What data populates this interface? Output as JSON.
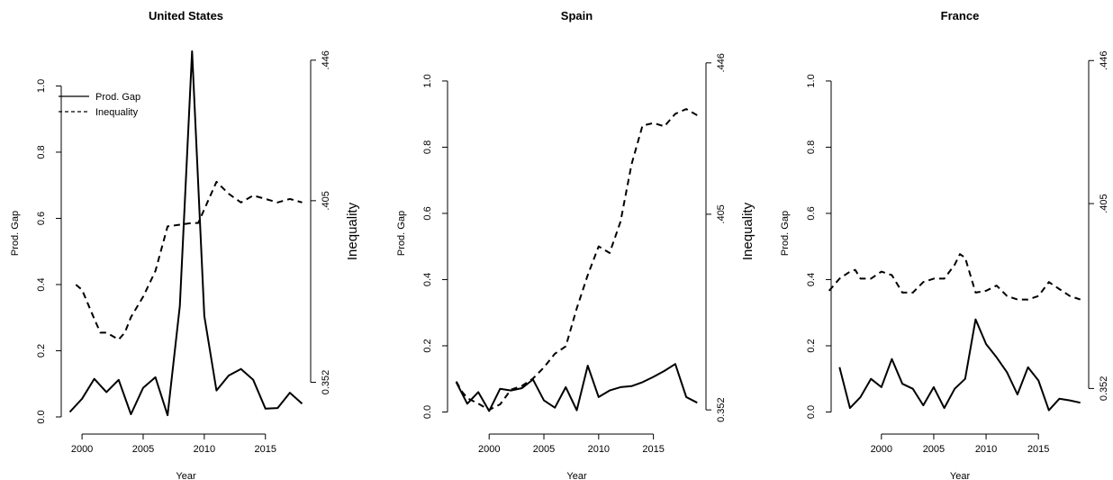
{
  "chart_data": [
    {
      "type": "line",
      "title": "United States",
      "xlabel": "Year",
      "ylabel": "Prod. Gap",
      "y2label": "Inequality",
      "xlim": [
        1998.3,
        2018.7
      ],
      "ylim": [
        -0.03,
        1.14
      ],
      "y2lim": [
        0.339,
        0.452
      ],
      "xticks": [
        "2000",
        "2005",
        "2010",
        "2015"
      ],
      "yticks": [
        "0.0",
        "0.2",
        "0.4",
        "0.6",
        "0.8",
        "1.0"
      ],
      "y2ticks": [
        "0.352",
        ".405",
        ".446"
      ],
      "legend": {
        "position": "top-left",
        "entries": [
          "Prod. Gap",
          "Inequality"
        ]
      },
      "series": [
        {
          "name": "Prod. Gap",
          "x": [
            1999,
            2000,
            2001,
            2002,
            2003,
            2004,
            2005,
            2006,
            2007,
            2008,
            2009,
            2010,
            2011,
            2012,
            2013,
            2014,
            2015,
            2016,
            2017,
            2018
          ],
          "values": [
            0.015,
            0.055,
            0.115,
            0.075,
            0.112,
            0.008,
            0.088,
            0.12,
            0.005,
            0.335,
            1.105,
            0.305,
            0.08,
            0.125,
            0.145,
            0.112,
            0.025,
            0.027,
            0.073,
            0.04
          ]
        },
        {
          "name": "Inequality",
          "x": [
            1999.5,
            2000,
            2001,
            2001.5,
            2002,
            2003,
            2003.5,
            2004,
            2005,
            2006,
            2007,
            2008,
            2009,
            2009.5,
            2010,
            2011,
            2012,
            2013,
            2014,
            2015,
            2016,
            2017,
            2018
          ],
          "values": [
            0.3805,
            0.379,
            0.3705,
            0.3665,
            0.3665,
            0.3645,
            0.3665,
            0.371,
            0.377,
            0.3845,
            0.3975,
            0.398,
            0.3985,
            0.3985,
            0.4025,
            0.4105,
            0.407,
            0.4045,
            0.4065,
            0.4055,
            0.4045,
            0.4055,
            0.4045
          ]
        }
      ]
    },
    {
      "type": "line",
      "title": "Spain",
      "xlabel": "Year",
      "ylabel": "Prod. Gap",
      "y2label": "Inequality",
      "xlim": [
        1996.2,
        2019.8
      ],
      "ylim": [
        -0.045,
        1.125
      ],
      "y2lim": [
        0.3474,
        0.4523
      ],
      "xticks": [
        "2000",
        "2005",
        "2010",
        "2015"
      ],
      "yticks": [
        "0.0",
        "0.2",
        "0.4",
        "0.6",
        "0.8",
        "1.0"
      ],
      "y2ticks": [
        "0.352",
        ".405",
        ".446"
      ],
      "series": [
        {
          "name": "Prod. Gap",
          "x": [
            1997,
            1998,
            1999,
            2000,
            2001,
            2002,
            2003,
            2004,
            2005,
            2006,
            2007,
            2008,
            2009,
            2010,
            2011,
            2012,
            2013,
            2014,
            2015,
            2016,
            2017,
            2018,
            2019
          ],
          "values": [
            0.09,
            0.025,
            0.06,
            0.003,
            0.07,
            0.065,
            0.072,
            0.098,
            0.035,
            0.013,
            0.075,
            0.005,
            0.14,
            0.045,
            0.065,
            0.075,
            0.078,
            0.09,
            0.106,
            0.124,
            0.145,
            0.045,
            0.028
          ]
        },
        {
          "name": "Inequality",
          "x": [
            1997,
            1997.5,
            1998,
            1999,
            2000,
            2001,
            2002,
            2003,
            2004,
            2005,
            2006,
            2007,
            2008,
            2009,
            2010,
            2011,
            2012,
            2013,
            2014,
            2015,
            2016,
            2017,
            2018,
            2019
          ],
          "values": [
            0.3597,
            0.357,
            0.3552,
            0.3537,
            0.352,
            0.3535,
            0.3575,
            0.3585,
            0.3605,
            0.3635,
            0.3672,
            0.3692,
            0.3795,
            0.3885,
            0.3963,
            0.3945,
            0.403,
            0.4185,
            0.429,
            0.4297,
            0.4288,
            0.4322,
            0.4335,
            0.4318
          ]
        }
      ]
    },
    {
      "type": "line",
      "title": "France",
      "xlabel": "Year",
      "ylabel": "Prod. Gap",
      "y2label": "",
      "xlim": [
        1995.2,
        2019.8
      ],
      "ylim": [
        -0.045,
        1.125
      ],
      "y2lim": [
        0.341,
        0.452
      ],
      "xticks": [
        "2000",
        "2005",
        "2010",
        "2015"
      ],
      "yticks": [
        "0.0",
        "0.2",
        "0.4",
        "0.6",
        "0.8",
        "1.0"
      ],
      "y2ticks": [
        "0.352",
        ".405",
        ".446"
      ],
      "series": [
        {
          "name": "Prod. Gap",
          "x": [
            1996,
            1997,
            1998,
            1999,
            2000,
            2001,
            2002,
            2003,
            2004,
            2005,
            2006,
            2007,
            2008,
            2009,
            2010,
            2011,
            2012,
            2013,
            2014,
            2015,
            2016,
            2017,
            2018,
            2019
          ],
          "values": [
            0.135,
            0.012,
            0.045,
            0.1,
            0.075,
            0.16,
            0.085,
            0.07,
            0.02,
            0.075,
            0.012,
            0.07,
            0.1,
            0.28,
            0.205,
            0.165,
            0.12,
            0.053,
            0.135,
            0.095,
            0.005,
            0.04,
            0.035,
            0.028
          ]
        },
        {
          "name": "Inequality",
          "x": [
            1995,
            1996,
            1997,
            1997.5,
            1998,
            1999,
            2000,
            2001,
            2002,
            2003,
            2004,
            2005,
            2006,
            2007,
            2007.5,
            2008,
            2009,
            2010,
            2011,
            2012,
            2013,
            2014,
            2015,
            2016,
            2017,
            2018,
            2019
          ],
          "values": [
            0.38,
            0.3835,
            0.3855,
            0.386,
            0.3835,
            0.3835,
            0.3855,
            0.3845,
            0.3795,
            0.3795,
            0.3825,
            0.3835,
            0.3835,
            0.3875,
            0.3905,
            0.3895,
            0.3795,
            0.38,
            0.3815,
            0.3785,
            0.3775,
            0.3775,
            0.3785,
            0.3825,
            0.3805,
            0.3785,
            0.3775
          ]
        }
      ]
    }
  ]
}
